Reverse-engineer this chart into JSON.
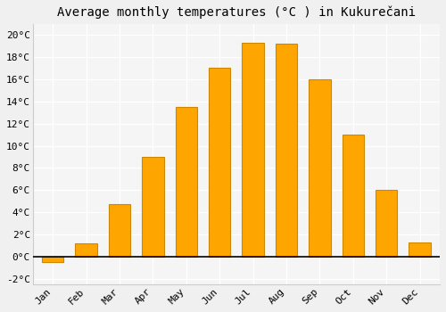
{
  "title": "Average monthly temperatures (°C ) in Kukurečani",
  "months": [
    "Jan",
    "Feb",
    "Mar",
    "Apr",
    "May",
    "Jun",
    "Jul",
    "Aug",
    "Sep",
    "Oct",
    "Nov",
    "Dec"
  ],
  "values": [
    -0.5,
    1.2,
    4.7,
    9.0,
    13.5,
    17.0,
    19.3,
    19.2,
    16.0,
    11.0,
    6.0,
    1.3
  ],
  "bar_color": "#FFA500",
  "bar_edge_color": "#CC8800",
  "background_color": "#F0F0F0",
  "plot_bg_color": "#F5F5F5",
  "grid_color": "#FFFFFF",
  "ylim": [
    -2.5,
    21
  ],
  "yticks": [
    -2,
    0,
    2,
    4,
    6,
    8,
    10,
    12,
    14,
    16,
    18,
    20
  ],
  "title_fontsize": 10,
  "tick_fontsize": 8,
  "font_family": "monospace"
}
